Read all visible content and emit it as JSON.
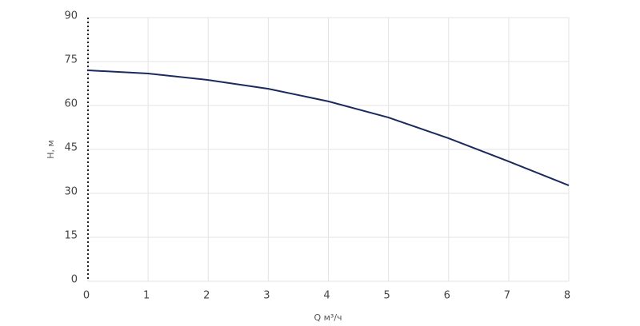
{
  "chart_data": {
    "type": "line",
    "x_label": "Q м³/ч",
    "y_label": "H, м",
    "x": [
      0,
      1,
      2,
      3,
      4,
      5,
      6,
      7,
      8
    ],
    "series": [
      {
        "color": "#1b2a5c",
        "values": [
          72,
          70.9,
          68.7,
          65.7,
          61.4,
          55.9,
          48.8,
          40.9,
          32.7
        ]
      }
    ],
    "xlim": [
      0,
      8
    ],
    "xticks": [
      0,
      1,
      2,
      3,
      4,
      5,
      6,
      7,
      8
    ],
    "ylim": [
      0,
      90
    ],
    "yticks": [
      0,
      15,
      30,
      45,
      60,
      75,
      90
    ],
    "grid": true
  }
}
